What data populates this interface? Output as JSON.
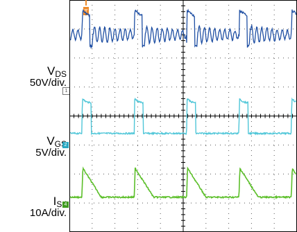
{
  "chart_data": {
    "type": "line",
    "title": "",
    "grid": true,
    "x_divisions": 10,
    "y_divisions": 8,
    "colors": {
      "frame": "#000000",
      "grid": "#555555",
      "trigger": "#ee8a2a",
      "ch1": "#1f4fa3",
      "ch2": "#4fc6d8",
      "ch4": "#5cbf2a"
    },
    "channels": [
      {
        "id": "ch1",
        "marker": "1",
        "name_main": "V",
        "name_sub": "DS",
        "scale": "50V/div.",
        "offset_div": 6.35
      },
      {
        "id": "ch2",
        "marker": "2",
        "name_main": "V",
        "name_sub": "GS",
        "scale": "5V/div.",
        "offset_div": 3.4
      },
      {
        "id": "ch4",
        "marker": "4",
        "name_main": "I",
        "name_sub": "Sd",
        "scale": "10A/div.",
        "offset_div": 1.2
      }
    ],
    "trigger_marker": "T",
    "period_div": 2.3,
    "first_edge_div": 0.55
  }
}
